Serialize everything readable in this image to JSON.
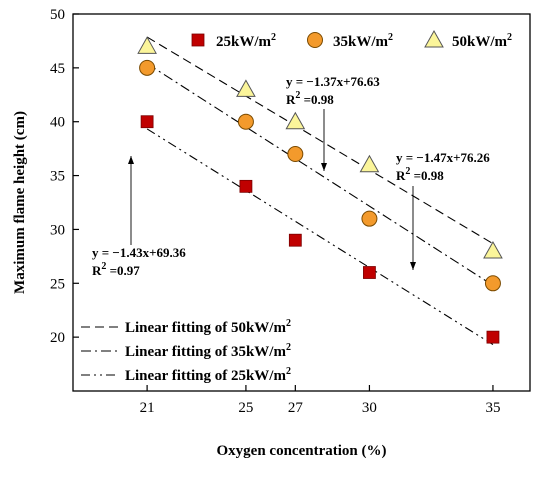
{
  "chart_data": {
    "type": "scatter",
    "xlabel": "Oxygen concentration (%)",
    "ylabel": "Maximum flame height (cm)",
    "xlim": [
      18,
      36.5
    ],
    "ylim": [
      15,
      50
    ],
    "xticks": [
      21,
      25,
      27,
      30,
      35
    ],
    "yticks": [
      20,
      25,
      30,
      35,
      40,
      45,
      50
    ],
    "grid": false,
    "x": [
      21,
      25,
      27,
      30,
      35
    ],
    "series": [
      {
        "name": "25kW/m",
        "name_sup": "2",
        "marker": "square",
        "color": "#c00000",
        "values": [
          40,
          34,
          29,
          26,
          20
        ],
        "fit_label": "Linear fitting of 25kW/m",
        "fit_label_sup": "2",
        "fit": {
          "slope": -1.43,
          "intercept": 69.36,
          "dash": "9,4,2,4,2,4"
        },
        "annotation": {
          "equation": "y = −1.43x+69.36",
          "r2_prefix": "R",
          "r2_sup": "2",
          "r2_value": " =0.97"
        }
      },
      {
        "name": "35kW/m",
        "name_sup": "2",
        "marker": "circle",
        "color": "#f39a2c",
        "values": [
          45,
          40,
          37,
          31,
          25
        ],
        "fit_label": "Linear fitting of 35kW/m",
        "fit_label_sup": "2",
        "fit": {
          "slope": -1.47,
          "intercept": 76.26,
          "dash": "10,4,2,4"
        },
        "annotation": {
          "equation": "y = −1.47x+76.26",
          "r2_prefix": "R",
          "r2_sup": "2",
          "r2_value": " =0.98"
        }
      },
      {
        "name": "50kW/m",
        "name_sup": "2",
        "marker": "triangle",
        "color": "#fbf59a",
        "values": [
          47,
          43,
          40,
          36,
          28
        ],
        "fit_label": "Linear fitting of 50kW/m",
        "fit_label_sup": "2",
        "fit": {
          "slope": -1.37,
          "intercept": 76.63,
          "dash": "9,5"
        },
        "annotation": {
          "equation": "y = −1.37x+76.63",
          "r2_prefix": "R",
          "r2_sup": "2",
          "r2_value": " =0.98"
        }
      }
    ],
    "legend_position": "top-right",
    "fit_legend_position": "bottom-left"
  }
}
